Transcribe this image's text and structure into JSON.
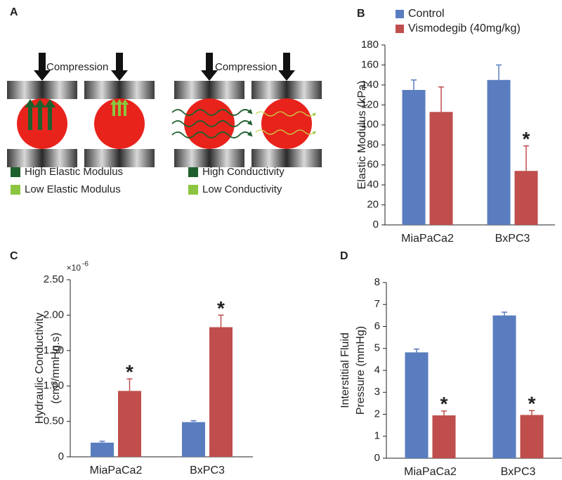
{
  "panel_labels": [
    "A",
    "B",
    "C",
    "D"
  ],
  "diagram": {
    "compression_labels": [
      "Compression",
      "Compression"
    ],
    "legends": [
      [
        {
          "label": "High Elastic Modulus",
          "color": "#1f5f2d"
        },
        {
          "label": "Low Elastic Modulus",
          "color": "#8bc53f"
        }
      ],
      [
        {
          "label": "High Conductivity",
          "color": "#1f5f2d"
        },
        {
          "label": "Low Conductivity",
          "color": "#8bc53f"
        }
      ]
    ]
  },
  "chart_data": [
    {
      "type": "bar",
      "ylabel": [
        "Elastic Modulus (kPa)"
      ],
      "categories": [
        "MiaPaCa2",
        "BxPC3"
      ],
      "series": [
        {
          "name": "Control",
          "color": "#5a7dbf",
          "values": [
            135,
            145
          ],
          "error": [
            10,
            15
          ],
          "value_annotations": [
            null,
            null
          ]
        },
        {
          "name": "Vismodegib (40mg/kg)",
          "color": "#bf4e4c",
          "values": [
            113,
            54
          ],
          "error": [
            25,
            25
          ],
          "value_annotations": [
            null,
            "*"
          ]
        }
      ],
      "ylim": [
        0,
        180
      ],
      "yticks": [
        0,
        20,
        40,
        60,
        80,
        100,
        120,
        140,
        160,
        180
      ],
      "legend": "top"
    },
    {
      "type": "bar",
      "ylabel": [
        "Hydraulic Conductivity",
        "(cm²/mmHg.s)"
      ],
      "y_multiplier": {
        "base": "×10",
        "exponent": "-6"
      },
      "categories": [
        "MiaPaCa2",
        "BxPC3"
      ],
      "series": [
        {
          "color": "#5a7dbf",
          "values": [
            0.2,
            0.49
          ],
          "error": [
            0.02,
            0.02
          ],
          "value_annotations": [
            null,
            null
          ]
        },
        {
          "color": "#bf4e4c",
          "values": [
            0.93,
            1.83
          ],
          "error": [
            0.17,
            0.17
          ],
          "value_annotations": [
            "*",
            "*"
          ]
        }
      ],
      "ylim": [
        0,
        2.5
      ],
      "yticks": [
        0,
        {
          "value": 0.5,
          "label": "0.50"
        },
        {
          "value": 1,
          "label": "1.00"
        },
        {
          "value": 1.5,
          "label": "1.50"
        },
        {
          "value": 2,
          "label": "2.00"
        },
        {
          "value": 2.5,
          "label": "2.50"
        }
      ]
    },
    {
      "type": "bar",
      "ylabel": [
        "Interstitial Fluid",
        "Pressure (mmHg)"
      ],
      "categories": [
        "MiaPaCa2",
        "BxPC3"
      ],
      "series": [
        {
          "color": "#5a7dbf",
          "values": [
            4.82,
            6.5
          ],
          "error": [
            0.15,
            0.15
          ],
          "value_annotations": [
            null,
            null
          ]
        },
        {
          "color": "#bf4e4c",
          "values": [
            1.95,
            1.97
          ],
          "error": [
            0.2,
            0.2
          ],
          "value_annotations": [
            "*",
            "*"
          ]
        }
      ],
      "ylim": [
        0,
        8
      ],
      "yticks": [
        0,
        1,
        2,
        3,
        4,
        5,
        6,
        7,
        8
      ]
    }
  ]
}
